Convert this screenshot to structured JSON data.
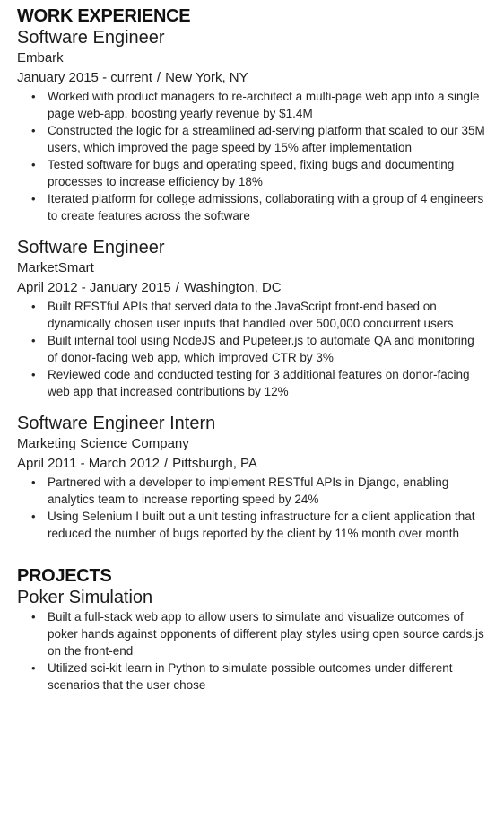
{
  "work": {
    "heading": "WORK EXPERIENCE",
    "jobs": [
      {
        "title": "Software Engineer",
        "company": "Embark",
        "dates": "January 2015 - current",
        "location": "New York, NY",
        "bullets": [
          "Worked with product managers to re-architect a multi-page web app into a single page web-app, boosting yearly revenue by $1.4M",
          "Constructed the logic for a streamlined ad-serving platform that scaled to our 35M users, which improved the page speed by 15% after implementation",
          "Tested software for bugs and operating speed, fixing bugs and documenting processes to increase efficiency by 18%",
          "Iterated platform for college admissions, collaborating with a group of 4 engineers to create features across the software"
        ]
      },
      {
        "title": "Software Engineer",
        "company": "MarketSmart",
        "dates": "April 2012 - January 2015",
        "location": "Washington, DC",
        "bullets": [
          "Built RESTful APIs that served data to the JavaScript front-end based on dynamically chosen user inputs that handled over 500,000 concurrent users",
          "Built internal tool using NodeJS and Pupeteer.js to automate QA and monitoring of donor-facing web app, which improved CTR by 3%",
          "Reviewed code and conducted testing for 3 additional features on donor-facing web app that increased contributions by 12%"
        ]
      },
      {
        "title": "Software Engineer Intern",
        "company": "Marketing Science Company",
        "dates": "April 2011 - March 2012",
        "location": "Pittsburgh, PA",
        "bullets": [
          "Partnered with a developer to implement RESTful APIs in Django, enabling analytics team to increase reporting speed by 24%",
          "Using Selenium I built out a unit testing infrastructure for a client application that reduced the number of bugs reported by the client by 11% month over month"
        ]
      }
    ]
  },
  "projects": {
    "heading": "PROJECTS",
    "items": [
      {
        "title": "Poker Simulation",
        "bullets": [
          "Built a full-stack web app to allow users to simulate and visualize outcomes of poker hands against opponents of different play styles using open source cards.js on the front-end",
          "Utilized sci-kit learn in Python to simulate possible outcomes under different scenarios that the user chose"
        ]
      }
    ]
  },
  "separator": "/",
  "bullet_glyph": "•"
}
